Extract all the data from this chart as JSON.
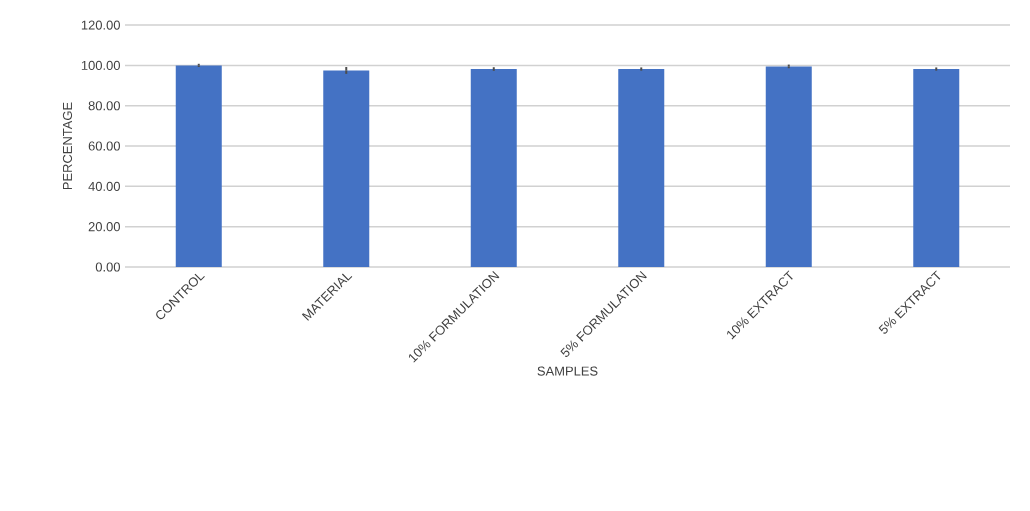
{
  "chart_data": {
    "type": "bar",
    "xlabel": "SAMPLES",
    "ylabel": "PERCENTAGE",
    "categories": [
      "CONTROL",
      "MATERIAL",
      "10% FORMULATION",
      "5% FORMULATION",
      "10% EXTRACT",
      "5% EXTRACT"
    ],
    "values": [
      100,
      97.5,
      98.2,
      98.2,
      99.5,
      98.2
    ],
    "errors": [
      0.8,
      1.7,
      0.9,
      0.8,
      0.9,
      0.8
    ],
    "color": "#4472c4",
    "ylim": [
      0,
      120
    ],
    "yticks": [
      {
        "value": 0,
        "label": "0.00"
      },
      {
        "value": 20,
        "label": "20.00"
      },
      {
        "value": 40,
        "label": "40.00"
      },
      {
        "value": 60,
        "label": "60.00"
      },
      {
        "value": 80,
        "label": "80.00"
      },
      {
        "value": 100,
        "label": "100.00"
      },
      {
        "value": 120,
        "label": "120.00"
      }
    ],
    "grid": "y"
  }
}
